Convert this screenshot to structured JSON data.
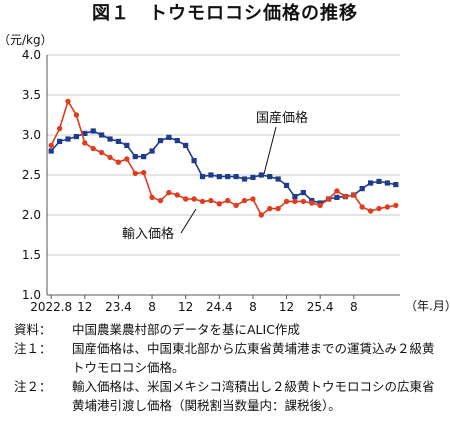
{
  "title": "図１　トウモロコシ価格の推移",
  "chart_data": {
    "type": "line",
    "ylabel": "（元/kg）",
    "xlabel": "（年.月）",
    "ylim": [
      1.0,
      4.0
    ],
    "yticks": [
      "1.0",
      "1.5",
      "2.0",
      "2.5",
      "3.0",
      "3.5",
      "4.0"
    ],
    "x_tick_labels": [
      "2022.8",
      "12",
      "23.4",
      "8",
      "12",
      "24.4",
      "8",
      "12",
      "25.4",
      "8"
    ],
    "grid": "horizontal",
    "series": [
      {
        "name": "国産価格",
        "color": "#1f3b8c",
        "marker": "square",
        "values": [
          2.8,
          2.92,
          2.95,
          2.98,
          3.02,
          3.05,
          3.0,
          2.95,
          2.92,
          2.87,
          2.73,
          2.73,
          2.8,
          2.93,
          2.97,
          2.93,
          2.87,
          2.68,
          2.48,
          2.5,
          2.48,
          2.48,
          2.48,
          2.45,
          2.47,
          2.5,
          2.48,
          2.45,
          2.37,
          2.23,
          2.28,
          2.18,
          2.15,
          2.2,
          2.22,
          2.23,
          2.25,
          2.33,
          2.4,
          2.42,
          2.4,
          2.38
        ]
      },
      {
        "name": "輸入価格",
        "color": "#e03c1e",
        "marker": "circle",
        "values": [
          2.87,
          3.08,
          3.42,
          3.25,
          2.9,
          2.83,
          2.78,
          2.72,
          2.66,
          2.7,
          2.52,
          2.53,
          2.22,
          2.18,
          2.28,
          2.25,
          2.2,
          2.2,
          2.17,
          2.18,
          2.14,
          2.18,
          2.12,
          2.18,
          2.2,
          2.0,
          2.08,
          2.08,
          2.17,
          2.17,
          2.17,
          2.15,
          2.12,
          2.2,
          2.3,
          2.23,
          2.25,
          2.1,
          2.05,
          2.08,
          2.1,
          2.12
        ]
      }
    ]
  },
  "notes": [
    {
      "key": "資料：",
      "text": "中国農業農村部のデータを基にALIC作成"
    },
    {
      "key": "注１：",
      "text": "国産価格は、中国東北部から広東省黄埔港までの運賃込み２級黄トウモロコシ価格。"
    },
    {
      "key": "注２：",
      "text": "輸入価格は、米国メキシコ湾積出し２級黄トウモロコシの広東省黄埔港引渡し価格（関税割当数量内：課税後）。"
    }
  ]
}
